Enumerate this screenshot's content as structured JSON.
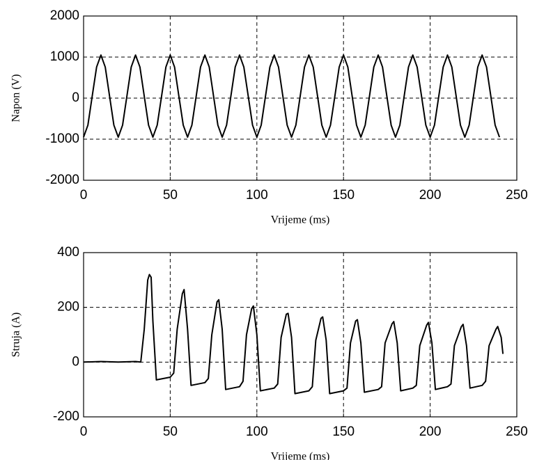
{
  "chart_data": [
    {
      "type": "line",
      "ylabel": "Napon (V)",
      "xlabel": "Vrijeme (ms)",
      "color": "#000000",
      "grid": true,
      "xlim": [
        0,
        250
      ],
      "xticks": [
        0,
        50,
        100,
        150,
        200,
        250
      ],
      "ylim": [
        -2000,
        2000
      ],
      "yticks": [
        -2000,
        -1000,
        0,
        1000,
        2000
      ],
      "x": [
        0,
        2.5,
        5,
        7.5,
        10,
        12.5,
        15,
        17.5,
        20,
        22.5,
        25,
        27.5,
        30,
        32.5,
        35,
        37.5,
        40,
        42.5,
        45,
        47.5,
        50,
        52.5,
        55,
        57.5,
        60,
        62.5,
        65,
        67.5,
        70,
        72.5,
        75,
        77.5,
        80,
        82.5,
        85,
        87.5,
        90,
        92.5,
        95,
        97.5,
        100,
        102.5,
        105,
        107.5,
        110,
        112.5,
        115,
        117.5,
        120,
        122.5,
        125,
        127.5,
        130,
        132.5,
        135,
        137.5,
        140,
        142.5,
        145,
        147.5,
        150,
        152.5,
        155,
        157.5,
        160,
        162.5,
        165,
        167.5,
        170,
        172.5,
        175,
        177.5,
        180,
        182.5,
        185,
        187.5,
        190,
        192.5,
        195,
        197.5,
        200,
        202.5,
        205,
        207.5,
        210,
        212.5,
        215,
        217.5,
        220,
        222.5,
        225,
        227.5,
        230,
        232.5,
        235,
        237.5,
        240
      ],
      "values": [
        -950,
        -657,
        50,
        757,
        1050,
        757,
        50,
        -657,
        -950,
        -657,
        50,
        757,
        1050,
        757,
        50,
        -657,
        -950,
        -657,
        50,
        757,
        1050,
        757,
        50,
        -657,
        -950,
        -657,
        50,
        757,
        1050,
        757,
        50,
        -657,
        -950,
        -657,
        50,
        757,
        1050,
        757,
        50,
        -657,
        -950,
        -657,
        50,
        757,
        1050,
        757,
        50,
        -657,
        -950,
        -657,
        50,
        757,
        1050,
        757,
        50,
        -657,
        -950,
        -657,
        50,
        757,
        1050,
        757,
        50,
        -657,
        -950,
        -657,
        50,
        757,
        1050,
        757,
        50,
        -657,
        -950,
        -657,
        50,
        757,
        1050,
        757,
        50,
        -657,
        -950,
        -657,
        50,
        757,
        1050,
        757,
        50,
        -657,
        -950,
        -657,
        50,
        757,
        1050,
        757,
        50,
        -657,
        -950
      ]
    },
    {
      "type": "line",
      "ylabel": "Struja (A)",
      "xlabel": "Vrijeme (ms)",
      "color": "#000000",
      "grid": true,
      "xlim": [
        0,
        250
      ],
      "xticks": [
        0,
        50,
        100,
        150,
        200,
        250
      ],
      "ylim": [
        -200,
        400
      ],
      "yticks": [
        -200,
        0,
        200,
        400
      ],
      "x": [
        0,
        10,
        20,
        30,
        33,
        35,
        37,
        38,
        39,
        40,
        42,
        50,
        52,
        54,
        57,
        58,
        60,
        62,
        70,
        72,
        74,
        77,
        78,
        80,
        82,
        90,
        92,
        94,
        97,
        98,
        100,
        102,
        110,
        112,
        114,
        117,
        118,
        120,
        122,
        130,
        132,
        134,
        137,
        138,
        140,
        142,
        150,
        152,
        154,
        157,
        158,
        160,
        162,
        170,
        172,
        174,
        178,
        179,
        181,
        183,
        190,
        192,
        194,
        198,
        199,
        201,
        203,
        210,
        212,
        214,
        218,
        219,
        221,
        223,
        230,
        232,
        234,
        238,
        239,
        241,
        242
      ],
      "values": [
        0,
        2,
        0,
        2,
        0,
        120,
        300,
        320,
        310,
        150,
        -65,
        -55,
        -40,
        120,
        250,
        265,
        120,
        -85,
        -75,
        -60,
        100,
        220,
        228,
        120,
        -100,
        -90,
        -70,
        100,
        195,
        205,
        100,
        -105,
        -95,
        -80,
        90,
        175,
        178,
        90,
        -115,
        -105,
        -90,
        80,
        160,
        165,
        80,
        -115,
        -105,
        -95,
        70,
        150,
        155,
        70,
        -110,
        -100,
        -90,
        70,
        140,
        148,
        70,
        -105,
        -95,
        -85,
        60,
        135,
        145,
        70,
        -100,
        -90,
        -80,
        60,
        130,
        138,
        60,
        -95,
        -85,
        -70,
        60,
        120,
        130,
        90,
        30
      ]
    }
  ]
}
